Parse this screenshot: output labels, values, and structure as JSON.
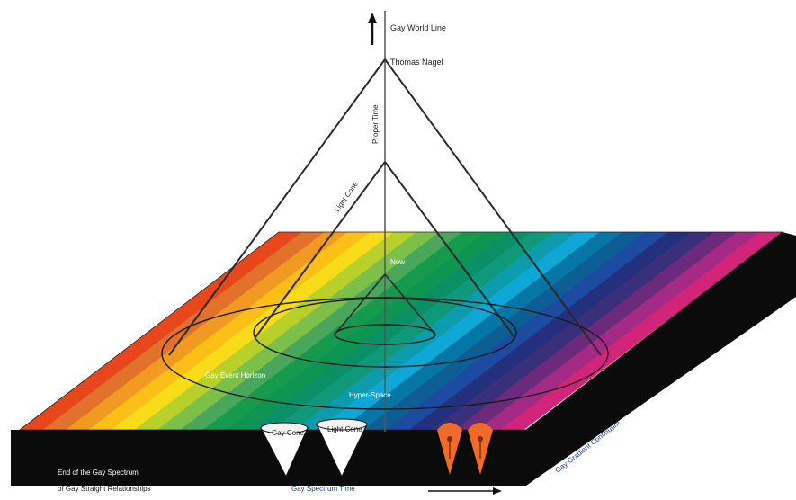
{
  "colors": {
    "spectrum": [
      "#e8471c",
      "#e2712b",
      "#f19a22",
      "#fbbf18",
      "#f8dc1a",
      "#b9cf2a",
      "#7cc049",
      "#4aa65a",
      "#169a4e",
      "#0e9552",
      "#0a8f66",
      "#10987a",
      "#0c9cab",
      "#0ea7d6",
      "#0676a6",
      "#0d5e94",
      "#1d4ba2",
      "#24307e",
      "#3a2f7a",
      "#6c2a7c",
      "#a42a86",
      "#d2257a"
    ],
    "plate_side": "#0b0b0b",
    "lines": "#2a2a2a",
    "markers": "#ee6b2a"
  },
  "labels": {
    "top_label": "Gay World Line",
    "apex_label": "Thomas Nagel",
    "vertical_label": "Proper Time",
    "inner_apex_label": "Light Cone",
    "center_label": "Now",
    "ring_label": "Gay Event Horizon",
    "outer_ring_label": "Hyper-Space",
    "cone_a_label": "Gay Cone",
    "cone_b_label": "Light Cone",
    "bottom_title": "End of the Gay Spectrum",
    "bottom_subtitle": "of Gay Straight Relationships",
    "bottom_axis_label": "Gay Spectrum Time",
    "side_axis_label": "Gay Gradient Continuum"
  },
  "icons": [
    "arrow-up-icon",
    "arrow-right-icon"
  ]
}
